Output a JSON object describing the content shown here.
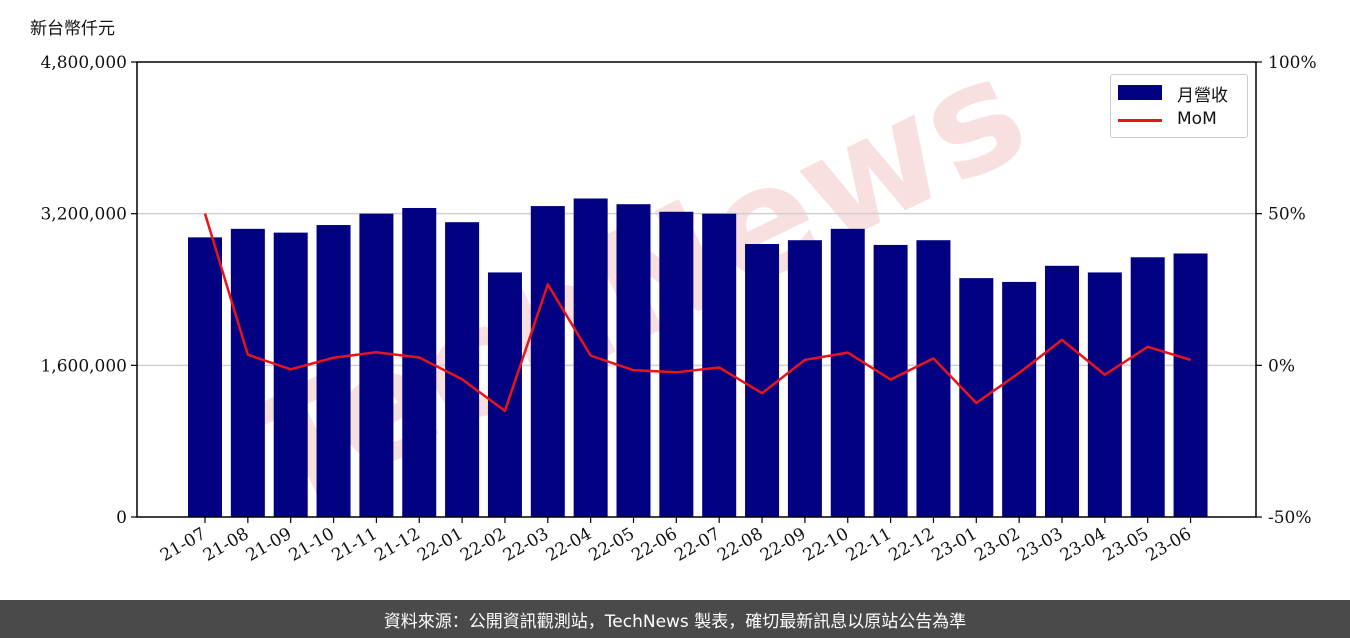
{
  "unit_label": "新台幣仟元",
  "footer_text": "資料來源：公開資訊觀測站，TechNews 製表，確切最新訊息以原站公告為準",
  "watermark_text": "TechNews",
  "legend": {
    "bar_label": "月營收",
    "line_label": "MoM"
  },
  "colors": {
    "bar": "#000080",
    "line": "#e8141c",
    "footer_bg": "#4a4a4a",
    "watermark": "#f2c7c7"
  },
  "chart_data": {
    "type": "bar",
    "categories": [
      "21-07",
      "21-08",
      "21-09",
      "21-10",
      "21-11",
      "21-12",
      "22-01",
      "22-02",
      "22-03",
      "22-04",
      "22-05",
      "22-06",
      "22-07",
      "22-08",
      "22-09",
      "22-10",
      "22-11",
      "22-12",
      "23-01",
      "23-02",
      "23-03",
      "23-04",
      "23-05",
      "23-06"
    ],
    "series": [
      {
        "name": "月營收",
        "type": "bar",
        "axis": "left",
        "values": [
          2950000,
          3040000,
          3000000,
          3080000,
          3200000,
          3260000,
          3110000,
          2580000,
          3280000,
          3360000,
          3300000,
          3220000,
          3200000,
          2880000,
          2920000,
          3040000,
          2870000,
          2920000,
          2520000,
          2480000,
          2650000,
          2580000,
          2740000,
          2780000
        ]
      },
      {
        "name": "MoM",
        "type": "line",
        "axis": "right",
        "values": [
          50.0,
          3.5,
          -1.3,
          2.5,
          4.3,
          2.6,
          -4.6,
          -15.0,
          26.7,
          3.2,
          -1.6,
          -2.3,
          -0.7,
          -9.2,
          1.8,
          4.2,
          -4.7,
          2.3,
          -12.4,
          -2.5,
          8.4,
          -3.1,
          6.1,
          1.8
        ]
      }
    ],
    "yticks_left": [
      "0",
      "1,600,000",
      "3,200,000",
      "4,800,000"
    ],
    "ylim_left": [
      0,
      4800000
    ],
    "yticks_right": [
      "-50%",
      "0%",
      "50%",
      "100%"
    ],
    "ylim_right": [
      -50,
      100
    ],
    "grid": "horizontal",
    "legend_position": "top-right"
  }
}
